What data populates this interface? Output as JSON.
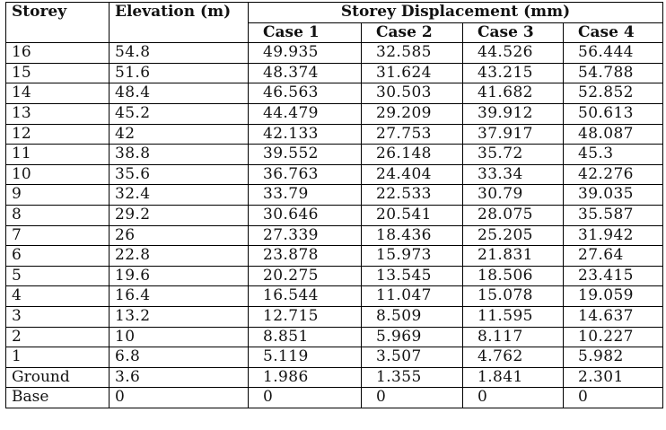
{
  "table": {
    "headers": {
      "storey": "Storey",
      "elevation": "Elevation (m)",
      "displacement_group": "Storey Displacement (mm)",
      "cases": [
        "Case 1",
        "Case 2",
        "Case 3",
        "Case 4"
      ]
    },
    "rows": [
      {
        "storey": "16",
        "elevation": "54.8",
        "cases": [
          "49.935",
          "32.585",
          "44.526",
          "56.444"
        ]
      },
      {
        "storey": "15",
        "elevation": "51.6",
        "cases": [
          "48.374",
          "31.624",
          "43.215",
          "54.788"
        ]
      },
      {
        "storey": "14",
        "elevation": "48.4",
        "cases": [
          "46.563",
          "30.503",
          "41.682",
          "52.852"
        ]
      },
      {
        "storey": "13",
        "elevation": "45.2",
        "cases": [
          "44.479",
          "29.209",
          "39.912",
          "50.613"
        ]
      },
      {
        "storey": "12",
        "elevation": "42",
        "cases": [
          "42.133",
          "27.753",
          "37.917",
          "48.087"
        ]
      },
      {
        "storey": "11",
        "elevation": "38.8",
        "cases": [
          "39.552",
          "26.148",
          "35.72",
          "45.3"
        ]
      },
      {
        "storey": "10",
        "elevation": "35.6",
        "cases": [
          "36.763",
          "24.404",
          "33.34",
          "42.276"
        ]
      },
      {
        "storey": "9",
        "elevation": "32.4",
        "cases": [
          "33.79",
          "22.533",
          "30.79",
          "39.035"
        ]
      },
      {
        "storey": "8",
        "elevation": "29.2",
        "cases": [
          "30.646",
          "20.541",
          "28.075",
          "35.587"
        ]
      },
      {
        "storey": "7",
        "elevation": "26",
        "cases": [
          "27.339",
          "18.436",
          "25.205",
          "31.942"
        ]
      },
      {
        "storey": "6",
        "elevation": "22.8",
        "cases": [
          "23.878",
          "15.973",
          "21.831",
          "27.64"
        ]
      },
      {
        "storey": "5",
        "elevation": "19.6",
        "cases": [
          "20.275",
          "13.545",
          "18.506",
          "23.415"
        ]
      },
      {
        "storey": "4",
        "elevation": "16.4",
        "cases": [
          "16.544",
          "11.047",
          "15.078",
          "19.059"
        ]
      },
      {
        "storey": "3",
        "elevation": "13.2",
        "cases": [
          "12.715",
          "8.509",
          "11.595",
          "14.637"
        ]
      },
      {
        "storey": "2",
        "elevation": "10",
        "cases": [
          "8.851",
          "5.969",
          "8.117",
          "10.227"
        ]
      },
      {
        "storey": "1",
        "elevation": "6.8",
        "cases": [
          "5.119",
          "3.507",
          "4.762",
          "5.982"
        ]
      },
      {
        "storey": "Ground",
        "elevation": "3.6",
        "cases": [
          "1.986",
          "1.355",
          "1.841",
          "2.301"
        ]
      },
      {
        "storey": "Base",
        "elevation": "0",
        "cases": [
          "0",
          "0",
          "0",
          "0"
        ]
      }
    ]
  }
}
